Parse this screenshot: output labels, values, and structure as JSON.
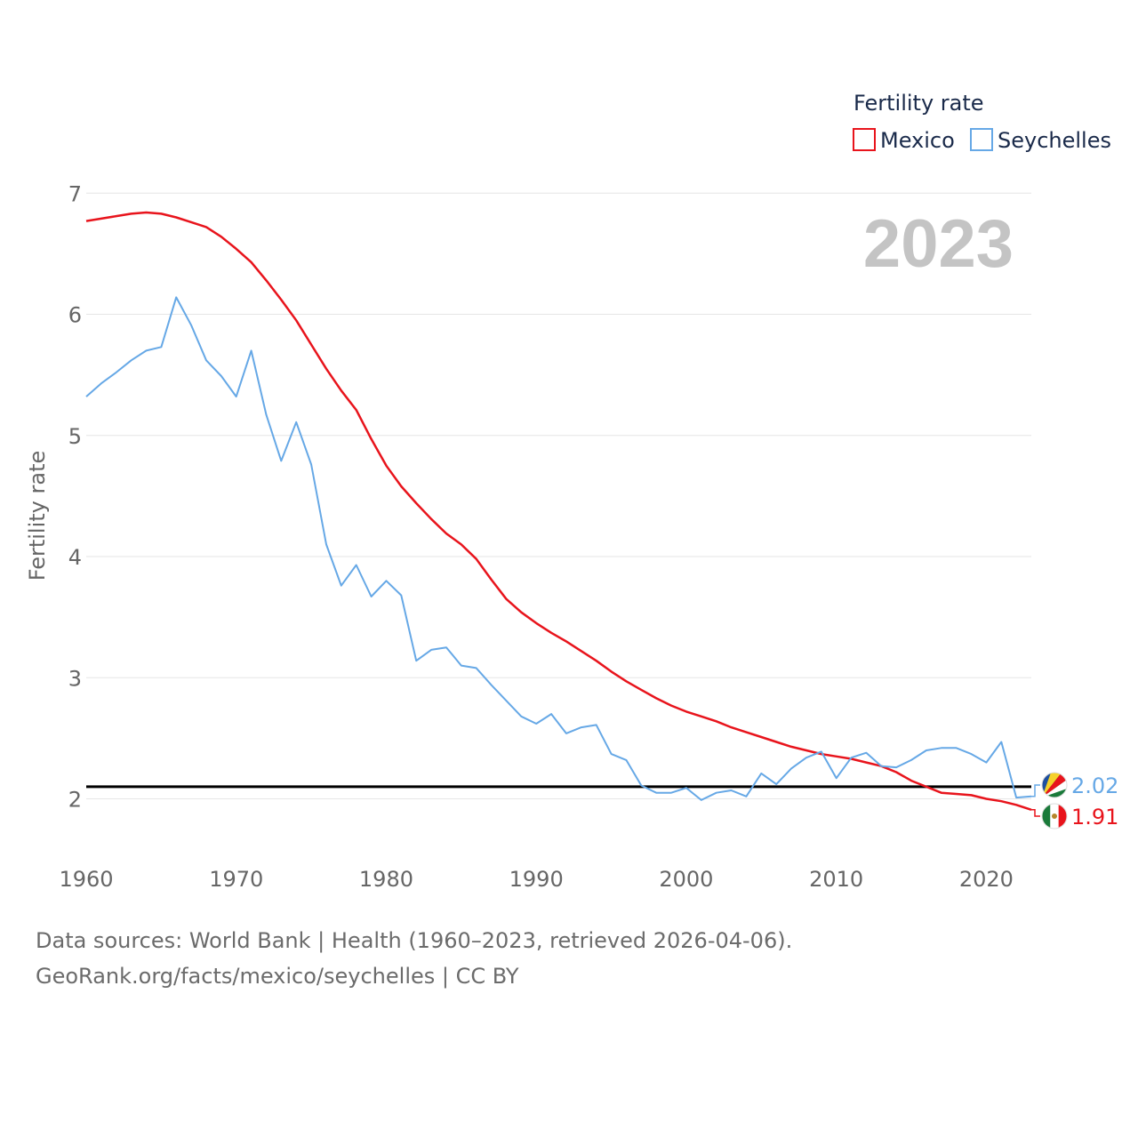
{
  "chart_data": {
    "type": "line",
    "title": "Fertility rate",
    "legend_title": "Fertility rate",
    "legend_position": "top-right",
    "year_label": "2023",
    "xlabel": "",
    "ylabel": "Fertility rate",
    "xlim": [
      1960,
      2023
    ],
    "ylim": [
      1.6,
      7.2
    ],
    "xticks": [
      1960,
      1970,
      1980,
      1990,
      2000,
      2010,
      2020
    ],
    "yticks": [
      2,
      3,
      4,
      5,
      6,
      7
    ],
    "reference_line": 2.1,
    "x": [
      1960,
      1961,
      1962,
      1963,
      1964,
      1965,
      1966,
      1967,
      1968,
      1969,
      1970,
      1971,
      1972,
      1973,
      1974,
      1975,
      1976,
      1977,
      1978,
      1979,
      1980,
      1981,
      1982,
      1983,
      1984,
      1985,
      1986,
      1987,
      1988,
      1989,
      1990,
      1991,
      1992,
      1993,
      1994,
      1995,
      1996,
      1997,
      1998,
      1999,
      2000,
      2001,
      2002,
      2003,
      2004,
      2005,
      2006,
      2007,
      2008,
      2009,
      2010,
      2011,
      2012,
      2013,
      2014,
      2015,
      2016,
      2017,
      2018,
      2019,
      2020,
      2021,
      2022,
      2023
    ],
    "series": [
      {
        "name": "Mexico",
        "color": "#e8141c",
        "end_label": "1.91",
        "values": [
          6.77,
          6.79,
          6.81,
          6.83,
          6.84,
          6.83,
          6.8,
          6.76,
          6.72,
          6.64,
          6.54,
          6.43,
          6.28,
          6.12,
          5.95,
          5.75,
          5.55,
          5.37,
          5.21,
          4.97,
          4.75,
          4.58,
          4.44,
          4.31,
          4.19,
          4.1,
          3.98,
          3.81,
          3.65,
          3.54,
          3.45,
          3.37,
          3.3,
          3.22,
          3.14,
          3.05,
          2.97,
          2.9,
          2.83,
          2.77,
          2.72,
          2.68,
          2.64,
          2.59,
          2.55,
          2.51,
          2.47,
          2.43,
          2.4,
          2.37,
          2.35,
          2.33,
          2.3,
          2.27,
          2.22,
          2.15,
          2.1,
          2.05,
          2.04,
          2.03,
          2.0,
          1.98,
          1.95,
          1.91
        ]
      },
      {
        "name": "Seychelles",
        "color": "#66a8e6",
        "end_label": "2.02",
        "values": [
          5.32,
          5.43,
          5.52,
          5.62,
          5.7,
          5.73,
          6.14,
          5.91,
          5.62,
          5.49,
          5.32,
          5.7,
          5.17,
          4.79,
          5.11,
          4.76,
          4.1,
          3.76,
          3.93,
          3.67,
          3.8,
          3.68,
          3.14,
          3.23,
          3.25,
          3.1,
          3.08,
          2.94,
          2.81,
          2.68,
          2.62,
          2.7,
          2.54,
          2.59,
          2.61,
          2.37,
          2.32,
          2.11,
          2.05,
          2.05,
          2.09,
          1.99,
          2.05,
          2.07,
          2.02,
          2.21,
          2.12,
          2.25,
          2.34,
          2.39,
          2.17,
          2.34,
          2.38,
          2.27,
          2.26,
          2.32,
          2.4,
          2.42,
          2.42,
          2.37,
          2.3,
          2.47,
          2.01,
          2.02
        ]
      }
    ]
  },
  "footer": {
    "line1": "Data sources: World Bank | Health (1960–2023, retrieved 2026-04-06).",
    "line2": "GeoRank.org/facts/mexico/seychelles | CC BY"
  }
}
